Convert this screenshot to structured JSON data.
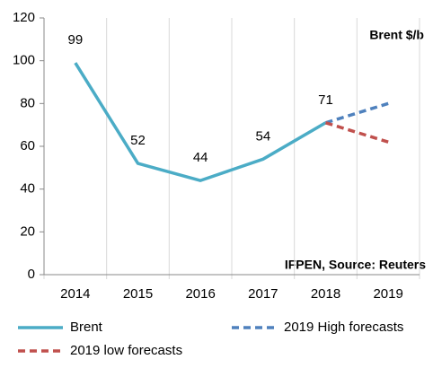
{
  "chart_data": {
    "type": "line",
    "categories": [
      "2014",
      "2015",
      "2016",
      "2017",
      "2018",
      "2019"
    ],
    "series": [
      {
        "name": "Brent",
        "color": "#4bacc6",
        "dashed": false,
        "data_labels": true,
        "values": [
          99,
          52,
          44,
          54,
          71,
          null
        ]
      },
      {
        "name": "2019 High forecasts",
        "color": "#4f81bd",
        "dashed": true,
        "data_labels": false,
        "values": [
          null,
          null,
          null,
          null,
          71,
          80
        ]
      },
      {
        "name": "2019 low forecasts",
        "color": "#c0504d",
        "dashed": true,
        "data_labels": false,
        "values": [
          null,
          null,
          null,
          null,
          71,
          62
        ]
      }
    ],
    "ylim": [
      0,
      120
    ],
    "yticks": [
      0,
      20,
      40,
      60,
      80,
      100,
      120
    ],
    "annotations": [
      "Brent $/b",
      "IFPEN, Source: Reuters"
    ],
    "legend": "bottom"
  }
}
